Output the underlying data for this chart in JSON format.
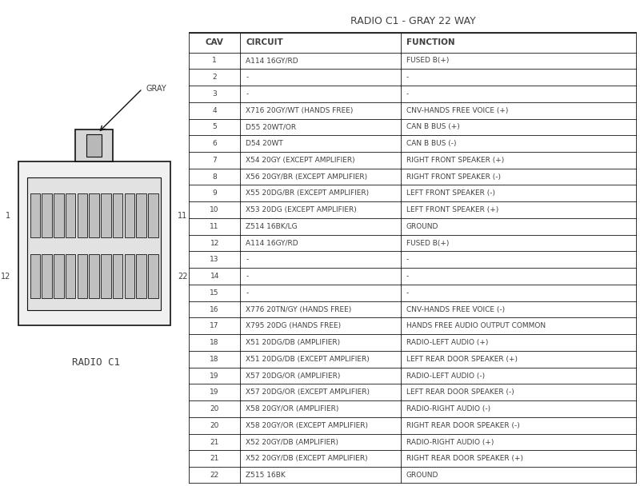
{
  "title": "RADIO C1 - GRAY 22 WAY",
  "col_headers": [
    "CAV",
    "CIRCUIT",
    "FUNCTION"
  ],
  "rows": [
    [
      "1",
      "A114 16GY/RD",
      "FUSED B(+)"
    ],
    [
      "2",
      "-",
      "-"
    ],
    [
      "3",
      "-",
      "-"
    ],
    [
      "4",
      "X716 20GY/WT (HANDS FREE)",
      "CNV-HANDS FREE VOICE (+)"
    ],
    [
      "5",
      "D55 20WT/OR",
      "CAN B BUS (+)"
    ],
    [
      "6",
      "D54 20WT",
      "CAN B BUS (-)"
    ],
    [
      "7",
      "X54 20GY (EXCEPT AMPLIFIER)",
      "RIGHT FRONT SPEAKER (+)"
    ],
    [
      "8",
      "X56 20GY/BR (EXCEPT AMPLIFIER)",
      "RIGHT FRONT SPEAKER (-)"
    ],
    [
      "9",
      "X55 20DG/BR (EXCEPT AMPLIFIER)",
      "LEFT FRONT SPEAKER (-)"
    ],
    [
      "10",
      "X53 20DG (EXCEPT AMPLIFIER)",
      "LEFT FRONT SPEAKER (+)"
    ],
    [
      "11",
      "Z514 16BK/LG",
      "GROUND"
    ],
    [
      "12",
      "A114 16GY/RD",
      "FUSED B(+)"
    ],
    [
      "13",
      "-",
      "-"
    ],
    [
      "14",
      "-",
      "-"
    ],
    [
      "15",
      "-",
      "-"
    ],
    [
      "16",
      "X776 20TN/GY (HANDS FREE)",
      "CNV-HANDS FREE VOICE (-)"
    ],
    [
      "17",
      "X795 20DG (HANDS FREE)",
      "HANDS FREE AUDIO OUTPUT COMMON"
    ],
    [
      "18",
      "X51 20DG/DB (AMPLIFIER)",
      "RADIO-LEFT AUDIO (+)"
    ],
    [
      "18",
      "X51 20DG/DB (EXCEPT AMPLIFIER)",
      "LEFT REAR DOOR SPEAKER (+)"
    ],
    [
      "19",
      "X57 20DG/OR (AMPLIFIER)",
      "RADIO-LEFT AUDIO (-)"
    ],
    [
      "19",
      "X57 20DG/OR (EXCEPT AMPLIFIER)",
      "LEFT REAR DOOR SPEAKER (-)"
    ],
    [
      "20",
      "X58 20GY/OR (AMPLIFIER)",
      "RADIO-RIGHT AUDIO (-)"
    ],
    [
      "20",
      "X58 20GY/OR (EXCEPT AMPLIFIER)",
      "RIGHT REAR DOOR SPEAKER (-)"
    ],
    [
      "21",
      "X52 20GY/DB (AMPLIFIER)",
      "RADIO-RIGHT AUDIO (+)"
    ],
    [
      "21",
      "X52 20GY/DB (EXCEPT AMPLIFIER)",
      "RIGHT REAR DOOR SPEAKER (+)"
    ],
    [
      "22",
      "Z515 16BK",
      "GROUND"
    ]
  ],
  "connector_label": "RADIO C1",
  "gray_label": "GRAY",
  "bg_color": "#ffffff",
  "text_color": "#404040",
  "border_color": "#111111",
  "header_font_size": 7.5,
  "row_font_size": 6.5,
  "title_font_size": 9.0
}
